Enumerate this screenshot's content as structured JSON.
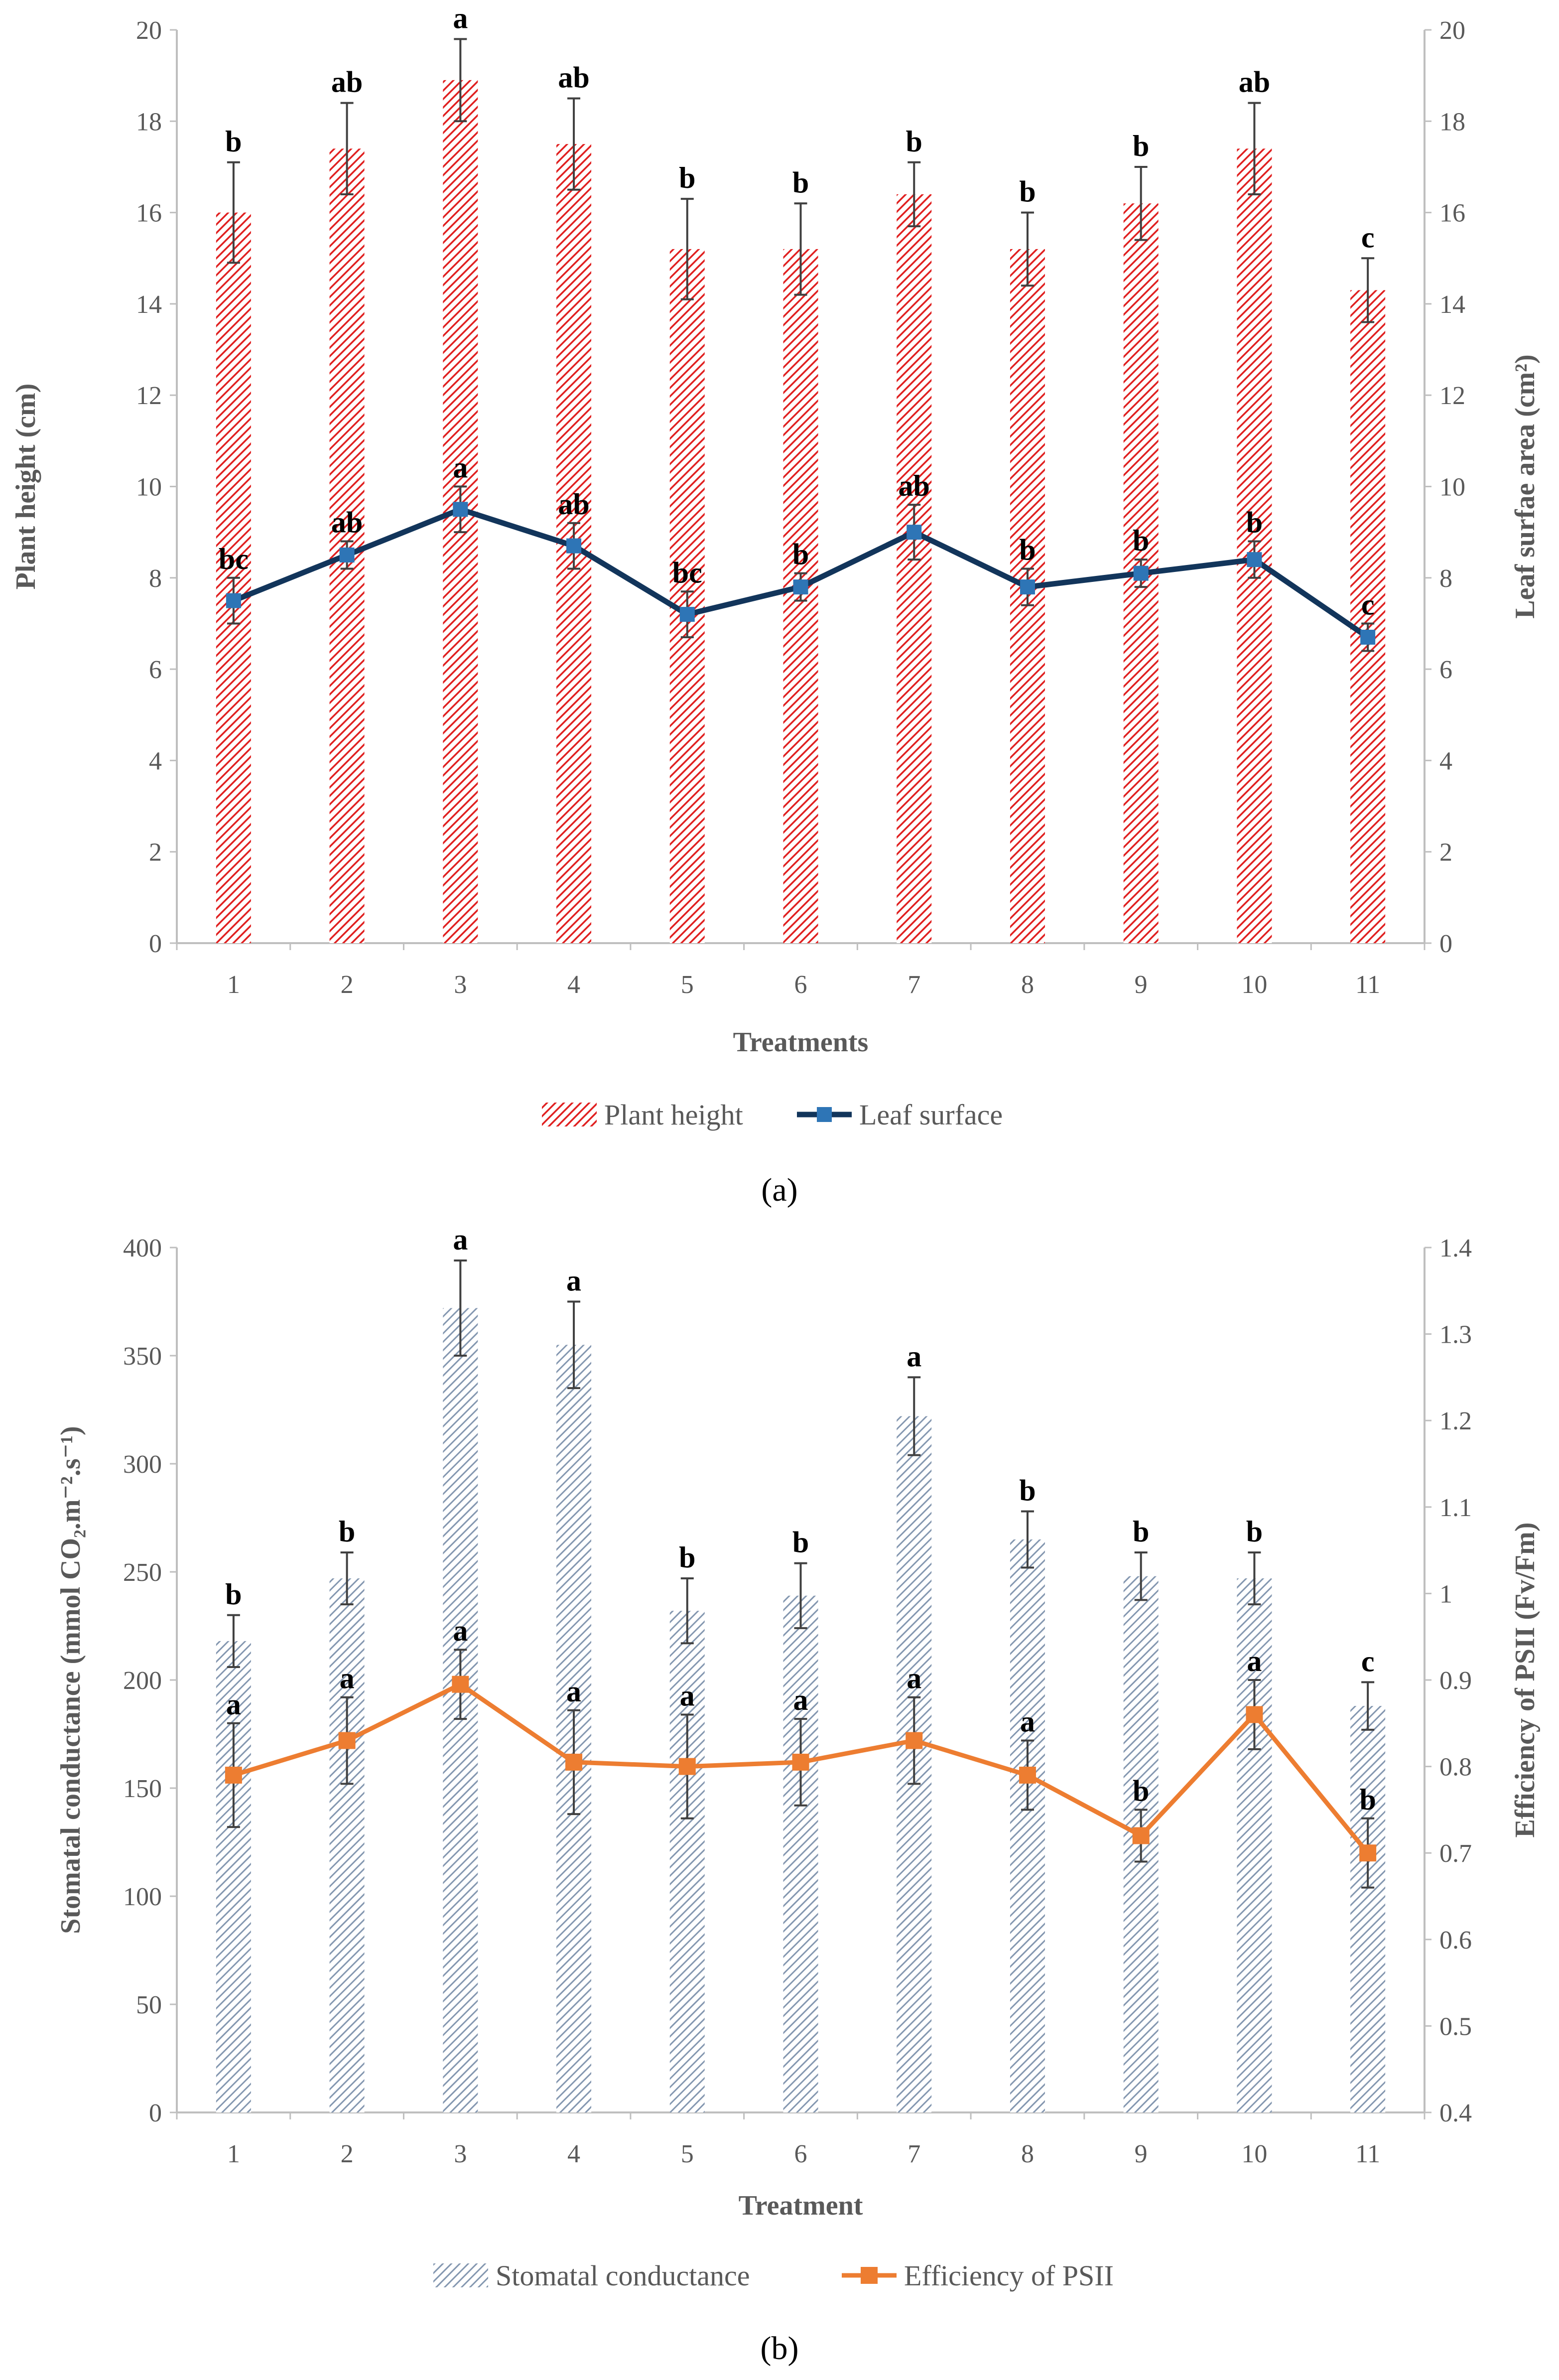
{
  "chart_data": [
    {
      "type": "bar",
      "panel_label": "(a)",
      "categories": [
        "1",
        "2",
        "3",
        "4",
        "5",
        "6",
        "7",
        "8",
        "9",
        "10",
        "11"
      ],
      "xlabel": "Treatments",
      "ylabel": "Plant height (cm)",
      "y2label": "Leaf surfae area (cm²)",
      "ylim": [
        0,
        20
      ],
      "y2lim": [
        0,
        20
      ],
      "yticks": [
        0,
        2,
        4,
        6,
        8,
        10,
        12,
        14,
        16,
        18,
        20
      ],
      "y2ticks": [
        0,
        2,
        4,
        6,
        8,
        10,
        12,
        14,
        16,
        18,
        20
      ],
      "grid": false,
      "legend_position": "bottom",
      "series": [
        {
          "name": "Plant height",
          "type": "bar",
          "axis": "left",
          "color": "#e02020",
          "pattern": "diagonal-hatch",
          "values": [
            16.0,
            17.4,
            18.9,
            17.5,
            15.2,
            15.2,
            16.4,
            15.2,
            16.2,
            17.4,
            14.3
          ],
          "errors": [
            1.1,
            1.0,
            0.9,
            1.0,
            1.1,
            1.0,
            0.7,
            0.8,
            0.8,
            1.0,
            0.7
          ],
          "letters": [
            "b",
            "ab",
            "a",
            "ab",
            "b",
            "b",
            "b",
            "b",
            "b",
            "ab",
            "c"
          ]
        },
        {
          "name": "Leaf surface",
          "type": "line",
          "axis": "right",
          "color": "#12355b",
          "marker_color": "#2e75b6",
          "marker": "square",
          "values": [
            7.5,
            8.5,
            9.5,
            8.7,
            7.2,
            7.8,
            9.0,
            7.8,
            8.1,
            8.4,
            6.7
          ],
          "errors": [
            0.5,
            0.3,
            0.5,
            0.5,
            0.5,
            0.3,
            0.6,
            0.4,
            0.3,
            0.4,
            0.3
          ],
          "letters": [
            "bc",
            "ab",
            "a",
            "ab",
            "bc",
            "b",
            "ab",
            "b",
            "b",
            "b",
            "c"
          ]
        }
      ]
    },
    {
      "type": "bar",
      "panel_label": "(b)",
      "categories": [
        "1",
        "2",
        "3",
        "4",
        "5",
        "6",
        "7",
        "8",
        "9",
        "10",
        "11"
      ],
      "xlabel": "Treatment",
      "ylabel": "Stomatal conductance (mmol CO₂.m⁻².s⁻¹)",
      "y2label": "Efficiency of PSII  (Fv/Fm)",
      "ylim": [
        0,
        400
      ],
      "y2lim": [
        0.4,
        1.4
      ],
      "yticks": [
        0,
        50,
        100,
        150,
        200,
        250,
        300,
        350,
        400
      ],
      "y2ticks": [
        "0.4",
        "0.5",
        "0.6",
        "0.7",
        "0.8",
        "0.9",
        "1",
        "1.1",
        "1.2",
        "1.3",
        "1.4"
      ],
      "grid": false,
      "legend_position": "bottom",
      "series": [
        {
          "name": "Stomatal conductance",
          "type": "bar",
          "axis": "left",
          "color": "#8497b0",
          "pattern": "diagonal-hatch",
          "values": [
            218,
            247,
            372,
            355,
            232,
            239,
            322,
            265,
            248,
            247,
            188
          ],
          "errors": [
            12,
            12,
            22,
            20,
            15,
            15,
            18,
            13,
            11,
            12,
            11
          ],
          "letters": [
            "b",
            "b",
            "a",
            "a",
            "b",
            "b",
            "a",
            "b",
            "b",
            "b",
            "c"
          ]
        },
        {
          "name": "Efficiency of PSII",
          "type": "line",
          "axis": "right",
          "color": "#ed7d31",
          "marker": "square",
          "values": [
            0.79,
            0.83,
            0.895,
            0.805,
            0.8,
            0.805,
            0.83,
            0.79,
            0.72,
            0.86,
            0.7
          ],
          "errors": [
            0.06,
            0.05,
            0.04,
            0.06,
            0.06,
            0.05,
            0.05,
            0.04,
            0.03,
            0.04,
            0.04
          ],
          "letters": [
            "a",
            "a",
            "a",
            "a",
            "a",
            "a",
            "a",
            "a",
            "b",
            "a",
            "b"
          ]
        }
      ]
    }
  ]
}
